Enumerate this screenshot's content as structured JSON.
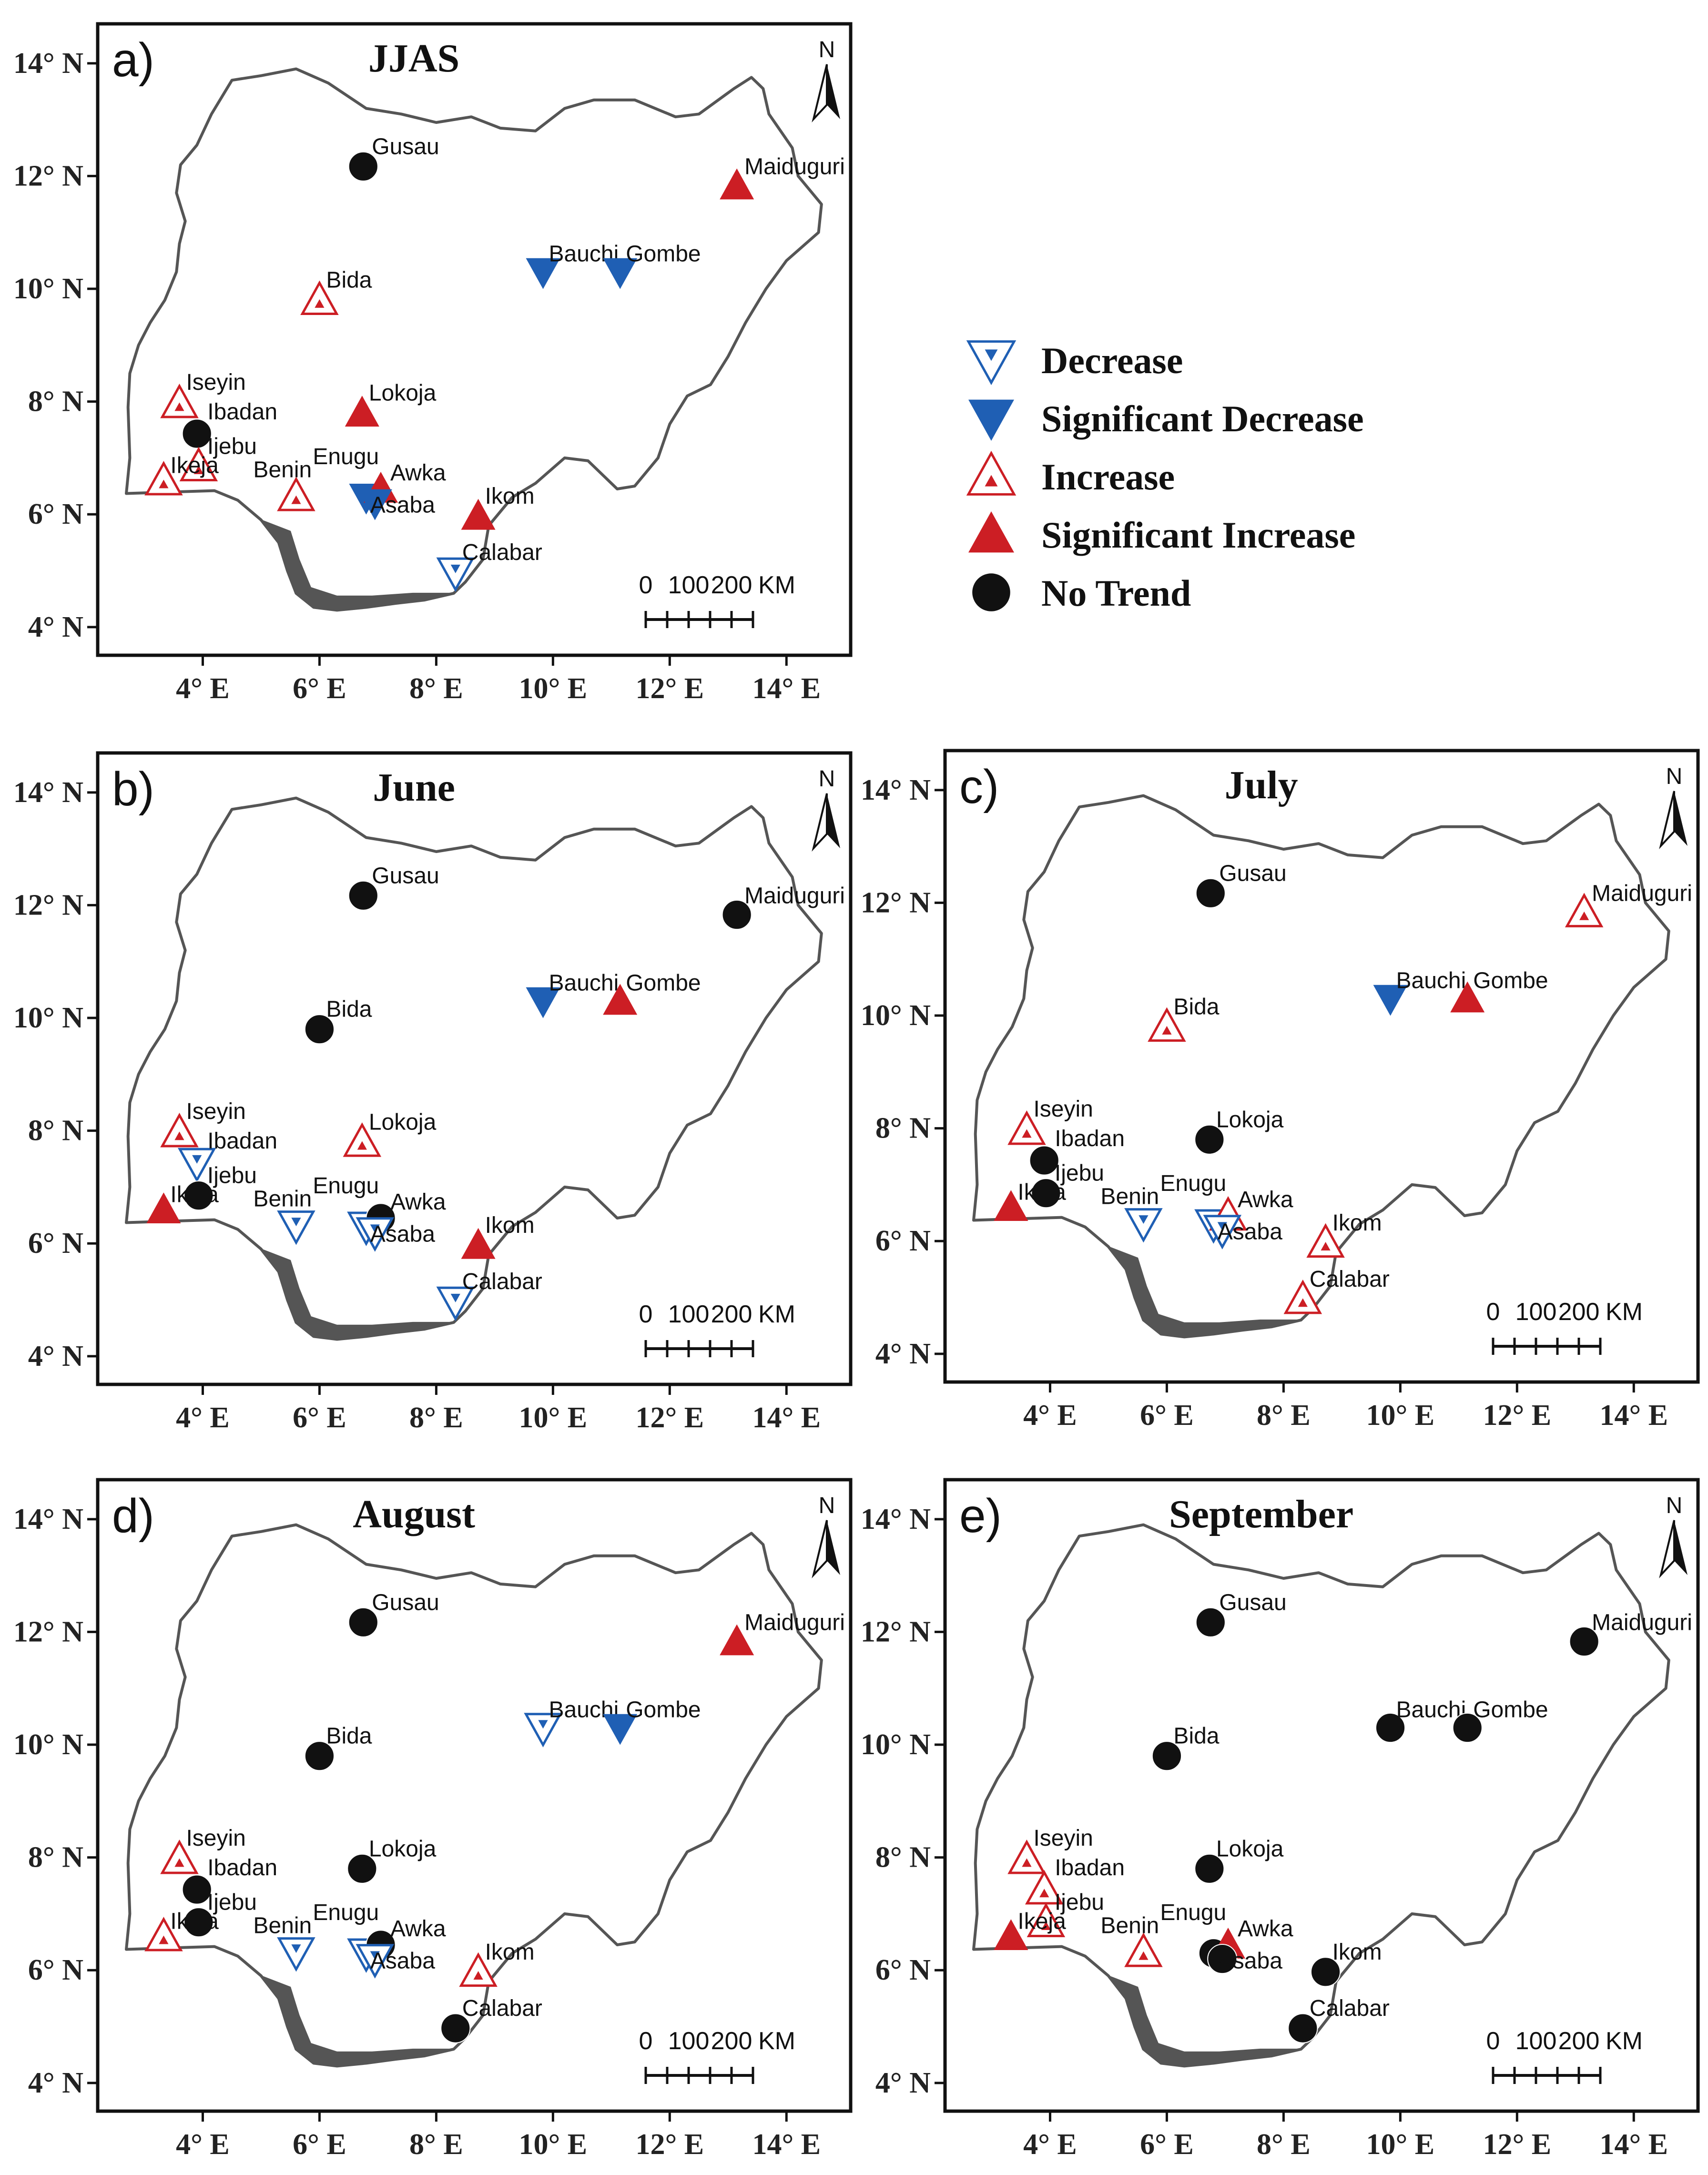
{
  "figure": {
    "axis_x_labels": [
      "4° E",
      "6° E",
      "8° E",
      "10° E",
      "12° E",
      "14° E"
    ],
    "axis_y_labels": [
      "4° N",
      "6° N",
      "8° N",
      "10° N",
      "12° N",
      "14° N"
    ],
    "north_label": "N",
    "scalebar": {
      "zero": "0",
      "mid": "100",
      "end": "200",
      "unit": "KM"
    }
  },
  "legend": [
    {
      "key": "decrease",
      "label": "Decrease"
    },
    {
      "key": "sig_decrease",
      "label": "Significant Decrease"
    },
    {
      "key": "increase",
      "label": "Increase"
    },
    {
      "key": "sig_increase",
      "label": "Significant Increase"
    },
    {
      "key": "no_trend",
      "label": "No Trend"
    }
  ],
  "colors": {
    "decrease": "#1f5fb4",
    "increase": "#cc1e24",
    "no_trend": "#111111",
    "border": "#555555"
  },
  "stations": [
    {
      "name": "Gusau",
      "lon": 6.75,
      "lat": 12.17
    },
    {
      "name": "Maiduguri",
      "lon": 13.15,
      "lat": 11.83
    },
    {
      "name": "Bauchi",
      "lon": 9.83,
      "lat": 10.3
    },
    {
      "name": "Gombe",
      "lon": 11.15,
      "lat": 10.3
    },
    {
      "name": "Bida",
      "lon": 6.0,
      "lat": 9.8
    },
    {
      "name": "Iseyin",
      "lon": 3.6,
      "lat": 7.97
    },
    {
      "name": "Ibadan",
      "lon": 3.9,
      "lat": 7.43
    },
    {
      "name": "Lokoja",
      "lon": 6.73,
      "lat": 7.8
    },
    {
      "name": "Ijebu",
      "lon": 3.93,
      "lat": 6.85
    },
    {
      "name": "Ikeja",
      "lon": 3.33,
      "lat": 6.6
    },
    {
      "name": "Benin",
      "lon": 5.6,
      "lat": 6.32
    },
    {
      "name": "Enugu",
      "lon": 6.8,
      "lat": 6.3
    },
    {
      "name": "Awka",
      "lon": 7.05,
      "lat": 6.45
    },
    {
      "name": "Asaba",
      "lon": 6.95,
      "lat": 6.2
    },
    {
      "name": "Ikom",
      "lon": 8.72,
      "lat": 5.97
    },
    {
      "name": "Calabar",
      "lon": 8.33,
      "lat": 4.97
    }
  ],
  "panels": [
    {
      "id": "a",
      "label": "a)",
      "title": "JJAS",
      "trends": {
        "Gusau": "no_trend",
        "Maiduguri": "sig_increase",
        "Bauchi": "sig_decrease",
        "Gombe": "sig_decrease",
        "Bida": "increase",
        "Iseyin": "increase",
        "Ibadan": "no_trend",
        "Lokoja": "sig_increase",
        "Ijebu": "increase",
        "Ikeja": "increase",
        "Benin": "increase",
        "Enugu": "sig_decrease",
        "Awka": "sig_increase",
        "Asaba": "sig_decrease",
        "Ikom": "sig_increase",
        "Calabar": "decrease"
      }
    },
    {
      "id": "b",
      "label": "b)",
      "title": "June",
      "trends": {
        "Gusau": "no_trend",
        "Maiduguri": "no_trend",
        "Bauchi": "sig_decrease",
        "Gombe": "sig_increase",
        "Bida": "no_trend",
        "Iseyin": "increase",
        "Ibadan": "decrease",
        "Lokoja": "increase",
        "Ijebu": "no_trend",
        "Ikeja": "sig_increase",
        "Benin": "decrease",
        "Enugu": "decrease",
        "Awka": "no_trend",
        "Asaba": "decrease",
        "Ikom": "sig_increase",
        "Calabar": "decrease"
      }
    },
    {
      "id": "c",
      "label": "c)",
      "title": "July",
      "trends": {
        "Gusau": "no_trend",
        "Maiduguri": "increase",
        "Bauchi": "sig_decrease",
        "Gombe": "sig_increase",
        "Bida": "increase",
        "Iseyin": "increase",
        "Ibadan": "no_trend",
        "Lokoja": "no_trend",
        "Ijebu": "no_trend",
        "Ikeja": "sig_increase",
        "Benin": "decrease",
        "Enugu": "decrease",
        "Awka": "increase",
        "Asaba": "decrease",
        "Ikom": "increase",
        "Calabar": "increase"
      }
    },
    {
      "id": "d",
      "label": "d)",
      "title": "August",
      "trends": {
        "Gusau": "no_trend",
        "Maiduguri": "sig_increase",
        "Bauchi": "decrease",
        "Gombe": "sig_decrease",
        "Bida": "no_trend",
        "Iseyin": "increase",
        "Ibadan": "no_trend",
        "Lokoja": "no_trend",
        "Ijebu": "no_trend",
        "Ikeja": "increase",
        "Benin": "decrease",
        "Enugu": "decrease",
        "Awka": "no_trend",
        "Asaba": "decrease",
        "Ikom": "increase",
        "Calabar": "no_trend"
      }
    },
    {
      "id": "e",
      "label": "e)",
      "title": "September",
      "trends": {
        "Gusau": "no_trend",
        "Maiduguri": "no_trend",
        "Bauchi": "no_trend",
        "Gombe": "no_trend",
        "Bida": "no_trend",
        "Iseyin": "increase",
        "Ibadan": "increase",
        "Lokoja": "no_trend",
        "Ijebu": "increase",
        "Ikeja": "sig_increase",
        "Benin": "increase",
        "Enugu": "no_trend",
        "Awka": "sig_increase",
        "Asaba": "no_trend",
        "Ikom": "no_trend",
        "Calabar": "no_trend"
      }
    }
  ]
}
